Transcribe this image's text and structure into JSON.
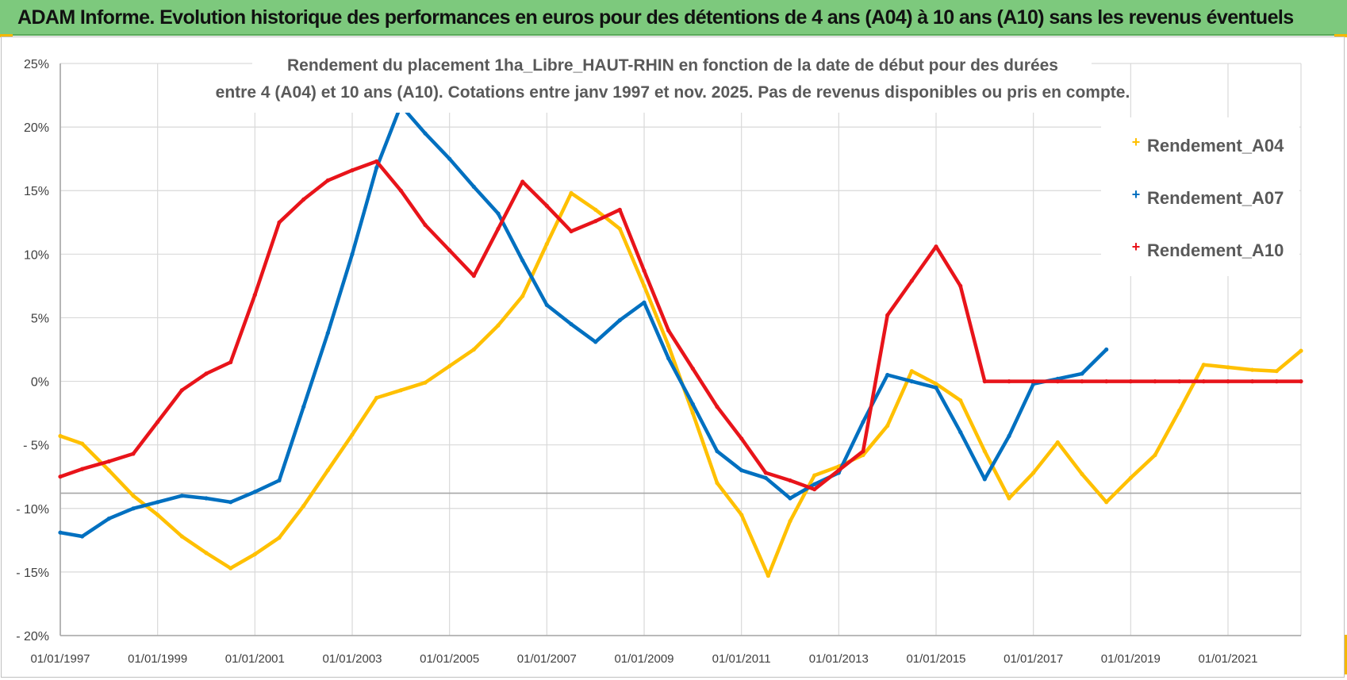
{
  "banner": {
    "text": "ADAM Informe. Evolution historique des performances en euros pour des détentions de 4 ans (A04) à 10 ans (A10) sans les revenus éventuels"
  },
  "colors": {
    "banner_bg": "#7dc97d",
    "A04": "#ffc000",
    "A07": "#0070c0",
    "A10": "#e8141a"
  },
  "chart_data": {
    "type": "line",
    "title_line1": "Rendement du placement 1ha_Libre_HAUT-RHIN en fonction de la date de début pour des durées",
    "title_line2": "entre 4 (A04) et 10 ans (A10). Cotations entre janv 1997 et nov. 2025. Pas de revenus disponibles ou pris en compte.",
    "xlabel": "",
    "ylabel": "",
    "xlim": [
      1997.0,
      2022.5
    ],
    "ylim": [
      -20,
      25
    ],
    "y_ticks": [
      25,
      20,
      15,
      10,
      5,
      0,
      -5,
      -10,
      -15,
      -20
    ],
    "y_tick_labels": [
      "25%",
      "20%",
      "15%",
      "10%",
      "5%",
      "0%",
      "- 5%",
      "- 10%",
      "- 15%",
      "- 20%"
    ],
    "x_ticks": [
      1997,
      1999,
      2001,
      2003,
      2005,
      2007,
      2009,
      2011,
      2013,
      2015,
      2017,
      2019,
      2021
    ],
    "x_tick_labels": [
      "01/01/1997",
      "01/01/1999",
      "01/01/2001",
      "01/01/2003",
      "01/01/2005",
      "01/01/2007",
      "01/01/2009",
      "01/01/2011",
      "01/01/2013",
      "01/01/2015",
      "01/01/2017",
      "01/01/2019",
      "01/01/2021"
    ],
    "legend_position": "top-right",
    "series": [
      {
        "name": "Rendement_A04",
        "color": "#ffc000",
        "x": [
          1997.0,
          1997.45,
          1998.0,
          1998.5,
          1999.0,
          1999.5,
          2000.0,
          2000.5,
          2001.0,
          2001.5,
          2002.0,
          2002.5,
          2003.0,
          2003.5,
          2004.0,
          2004.5,
          2005.0,
          2005.5,
          2006.0,
          2006.5,
          2007.0,
          2007.5,
          2008.0,
          2008.5,
          2009.0,
          2009.5,
          2010.0,
          2010.5,
          2011.0,
          2011.55,
          2012.0,
          2012.5,
          2013.0,
          2013.5,
          2014.0,
          2014.5,
          2015.0,
          2015.5,
          2016.0,
          2016.5,
          2017.0,
          2017.5,
          2018.0,
          2018.5,
          2019.0,
          2019.5,
          2020.0,
          2020.5,
          2021.0,
          2021.5,
          2022.0,
          2022.5
        ],
        "values": [
          -4.3,
          -4.9,
          -7.0,
          -9.0,
          -10.5,
          -12.2,
          -13.5,
          -14.7,
          -13.6,
          -12.3,
          -9.8,
          -7.0,
          -4.2,
          -1.3,
          -0.7,
          -0.1,
          1.2,
          2.5,
          4.4,
          6.7,
          10.8,
          14.8,
          13.5,
          12.0,
          7.5,
          2.8,
          -2.5,
          -8.0,
          -10.5,
          -15.3,
          -11.0,
          -7.4,
          -6.7,
          -5.8,
          -3.5,
          0.8,
          -0.2,
          -1.5,
          -5.5,
          -9.2,
          -7.2,
          -4.8,
          -7.3,
          -9.5,
          -7.6,
          -5.8,
          -2.3,
          1.3,
          1.1,
          0.9,
          0.8,
          2.4
        ]
      },
      {
        "name": "Rendement_A07",
        "color": "#0070c0",
        "x": [
          1997.0,
          1997.45,
          1998.0,
          1998.5,
          1999.0,
          1999.5,
          2000.0,
          2000.5,
          2001.0,
          2001.5,
          2002.0,
          2002.5,
          2003.0,
          2003.5,
          2004.0,
          2004.5,
          2005.0,
          2005.5,
          2006.0,
          2006.5,
          2007.0,
          2007.5,
          2008.0,
          2008.5,
          2009.0,
          2009.5,
          2010.0,
          2010.5,
          2011.0,
          2011.5,
          2012.0,
          2012.5,
          2013.0,
          2013.5,
          2014.0,
          2014.5,
          2015.0,
          2015.5,
          2016.0,
          2016.5,
          2017.0,
          2017.5,
          2018.0,
          2018.5
        ],
        "values": [
          -11.9,
          -12.2,
          -10.8,
          -10.0,
          -9.5,
          -9.0,
          -9.2,
          -9.5,
          -8.7,
          -7.8,
          -2.0,
          3.8,
          10.0,
          16.8,
          21.7,
          19.5,
          17.5,
          15.3,
          13.2,
          9.5,
          6.0,
          4.5,
          3.1,
          4.8,
          6.2,
          1.8,
          -1.8,
          -5.5,
          -7.0,
          -7.6,
          -9.2,
          -8.1,
          -7.2,
          -3.2,
          0.5,
          0.0,
          -0.5,
          -4.0,
          -7.7,
          -4.3,
          -0.2,
          0.2,
          0.6,
          2.5
        ]
      },
      {
        "name": "Rendement_A10",
        "color": "#e8141a",
        "x": [
          1997.0,
          1997.45,
          1998.0,
          1998.5,
          1999.0,
          1999.5,
          2000.0,
          2000.5,
          2001.0,
          2001.5,
          2002.0,
          2002.5,
          2003.0,
          2003.5,
          2004.0,
          2004.5,
          2005.0,
          2005.5,
          2006.0,
          2006.5,
          2007.0,
          2007.5,
          2008.0,
          2008.5,
          2009.0,
          2009.5,
          2010.0,
          2010.5,
          2011.0,
          2011.5,
          2012.0,
          2012.5,
          2013.0,
          2013.5,
          2014.0,
          2014.5,
          2015.0,
          2015.5,
          2016.0,
          2016.5,
          2017.0,
          2017.5,
          2018.0,
          2018.5,
          2019.0,
          2019.5,
          2020.0,
          2020.5,
          2021.0,
          2021.5,
          2022.0,
          2022.5
        ],
        "values": [
          -7.5,
          -6.9,
          -6.3,
          -5.7,
          -3.2,
          -0.7,
          0.6,
          1.5,
          6.8,
          12.5,
          14.3,
          15.8,
          16.6,
          17.3,
          15.0,
          12.3,
          10.3,
          8.3,
          12.0,
          15.7,
          13.8,
          11.8,
          12.6,
          13.5,
          8.7,
          4.0,
          1.0,
          -2.0,
          -4.5,
          -7.2,
          -7.8,
          -8.5,
          -7.0,
          -5.5,
          5.2,
          7.9,
          10.6,
          7.5,
          0.0,
          0.0,
          0.0,
          0.0,
          0.0,
          0.0,
          0.0,
          0.0,
          0.0,
          0.0,
          0.0,
          0.0,
          0.0,
          0.0
        ]
      }
    ]
  }
}
